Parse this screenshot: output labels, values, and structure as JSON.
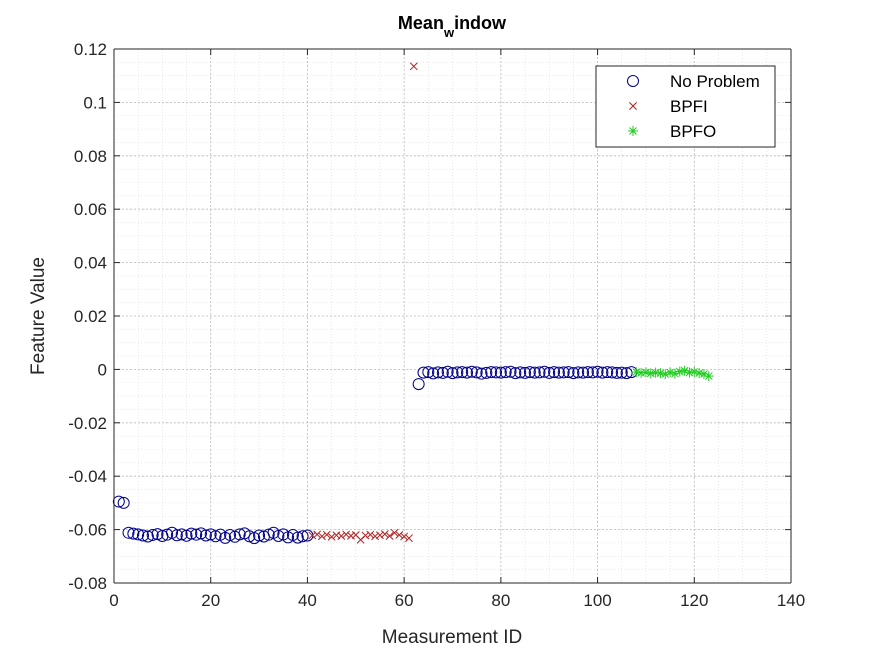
{
  "chart_data": {
    "type": "scatter",
    "title_main": "Mean",
    "title_sub": "w",
    "title_rest": "indow",
    "xlabel": "Measurement ID",
    "ylabel": "Feature Value",
    "xlim": [
      0,
      140
    ],
    "ylim": [
      -0.08,
      0.12
    ],
    "xticks": [
      0,
      20,
      40,
      60,
      80,
      100,
      120,
      140
    ],
    "xtick_labels": [
      "0",
      "20",
      "40",
      "60",
      "80",
      "100",
      "120",
      "140"
    ],
    "yticks": [
      -0.08,
      -0.06,
      -0.04,
      -0.02,
      0,
      0.02,
      0.04,
      0.06,
      0.08,
      0.1,
      0.12
    ],
    "ytick_labels": [
      "-0.08",
      "-0.06",
      "-0.04",
      "-0.02",
      "0",
      "0.02",
      "0.04",
      "0.06",
      "0.08",
      "0.1",
      "0.12"
    ],
    "grid": true,
    "minor_grid": true,
    "legend_position": "top-right",
    "series": [
      {
        "name": "No Problem",
        "marker": "circle",
        "color": "#00008b",
        "x": [
          1,
          2,
          3,
          4,
          5,
          6,
          7,
          8,
          9,
          10,
          11,
          12,
          13,
          14,
          15,
          16,
          17,
          18,
          19,
          20,
          21,
          22,
          23,
          24,
          25,
          26,
          27,
          28,
          29,
          30,
          31,
          32,
          33,
          34,
          35,
          36,
          37,
          38,
          39,
          40,
          63,
          64,
          65,
          66,
          67,
          68,
          69,
          70,
          71,
          72,
          73,
          74,
          75,
          76,
          77,
          78,
          79,
          80,
          81,
          82,
          83,
          84,
          85,
          86,
          87,
          88,
          89,
          90,
          91,
          92,
          93,
          94,
          95,
          96,
          97,
          98,
          99,
          100,
          101,
          102,
          103,
          104,
          105,
          106,
          107
        ],
        "y": [
          -0.0495,
          -0.05,
          -0.0612,
          -0.0615,
          -0.0618,
          -0.0622,
          -0.0626,
          -0.062,
          -0.0617,
          -0.0624,
          -0.0619,
          -0.0612,
          -0.0621,
          -0.0618,
          -0.0623,
          -0.0615,
          -0.0619,
          -0.0614,
          -0.0622,
          -0.0618,
          -0.0625,
          -0.0619,
          -0.0631,
          -0.062,
          -0.0627,
          -0.0618,
          -0.0614,
          -0.0625,
          -0.0632,
          -0.0622,
          -0.0626,
          -0.0619,
          -0.0612,
          -0.0624,
          -0.0618,
          -0.0629,
          -0.062,
          -0.063,
          -0.0625,
          -0.0622,
          -0.0055,
          -0.0012,
          -0.001,
          -0.0015,
          -0.0011,
          -0.0013,
          -0.0009,
          -0.0014,
          -0.0011,
          -0.001,
          -0.0012,
          -0.0009,
          -0.0011,
          -0.0016,
          -0.0013,
          -0.001,
          -0.0011,
          -0.0012,
          -0.001,
          -0.0009,
          -0.0014,
          -0.0011,
          -0.0013,
          -0.001,
          -0.0012,
          -0.0011,
          -0.0009,
          -0.0013,
          -0.001,
          -0.0012,
          -0.0011,
          -0.001,
          -0.0014,
          -0.0011,
          -0.0012,
          -0.001,
          -0.0011,
          -0.0009,
          -0.0012,
          -0.001,
          -0.0011,
          -0.0013,
          -0.0012,
          -0.0014,
          -0.001
        ]
      },
      {
        "name": "BPFI",
        "marker": "x",
        "color": "#b22222",
        "x": [
          41,
          42,
          43,
          44,
          45,
          46,
          47,
          48,
          49,
          50,
          51,
          52,
          53,
          54,
          55,
          56,
          57,
          58,
          59,
          60,
          61,
          62
        ],
        "y": [
          -0.0622,
          -0.0618,
          -0.0625,
          -0.0619,
          -0.0627,
          -0.0621,
          -0.0624,
          -0.0618,
          -0.0623,
          -0.062,
          -0.0638,
          -0.0622,
          -0.0619,
          -0.0625,
          -0.0621,
          -0.0617,
          -0.0624,
          -0.0612,
          -0.062,
          -0.0626,
          -0.0632,
          0.1135
        ]
      },
      {
        "name": "BPFO",
        "marker": "asterisk",
        "color": "#22cc22",
        "x": [
          108,
          109,
          110,
          111,
          112,
          113,
          114,
          115,
          116,
          117,
          118,
          119,
          120,
          121,
          122,
          123
        ],
        "y": [
          -0.001,
          -0.0013,
          -0.0011,
          -0.0015,
          -0.0012,
          -0.0014,
          -0.0018,
          -0.0011,
          -0.0016,
          -0.0008,
          -0.0005,
          -0.0012,
          -0.0009,
          -0.0014,
          -0.0017,
          -0.0025
        ]
      }
    ]
  }
}
